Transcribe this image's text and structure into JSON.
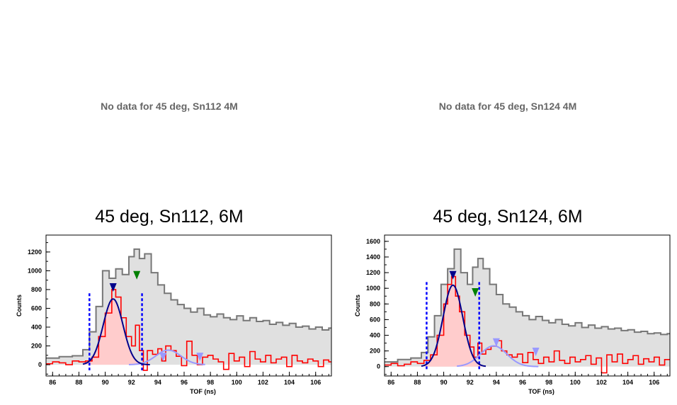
{
  "placeholders": [
    {
      "text": "No data for 45 deg, Sn112 4M"
    },
    {
      "text": "No data for 45 deg, Sn124 4M"
    }
  ],
  "colors": {
    "total_fill": "#e0e0e0",
    "total_line": "#777777",
    "subtracted_line": "#ff0000",
    "subtracted_fill": "#ffcccc",
    "main_fit": "#00008b",
    "secondary_fit": "#9999ff",
    "cut_lines": "#0000ff",
    "marker_green": "#008000"
  },
  "chart_data": [
    {
      "type": "histogram",
      "title": "45 deg, Sn112, 6M",
      "xlabel": "TOF (ns)",
      "ylabel": "Counts",
      "xlim": [
        85.5,
        107.2
      ],
      "ylim": [
        -120,
        1380
      ],
      "xticks": [
        86,
        88,
        90,
        92,
        94,
        96,
        98,
        100,
        102,
        104,
        106
      ],
      "yticks": [
        0,
        200,
        400,
        600,
        800,
        1000,
        1200
      ],
      "series": [
        {
          "role": "total",
          "points": [
            [
              85.5,
              70
            ],
            [
              86.5,
              85
            ],
            [
              87.5,
              95
            ],
            [
              88.3,
              160
            ],
            [
              88.8,
              350
            ],
            [
              89.3,
              620
            ],
            [
              89.8,
              1000
            ],
            [
              90.3,
              920
            ],
            [
              90.8,
              1020
            ],
            [
              91.3,
              960
            ],
            [
              91.8,
              1150
            ],
            [
              92.2,
              1230
            ],
            [
              92.6,
              1130
            ],
            [
              93.0,
              1180
            ],
            [
              93.5,
              980
            ],
            [
              94.0,
              850
            ],
            [
              94.5,
              760
            ],
            [
              95.0,
              690
            ],
            [
              95.5,
              640
            ],
            [
              96.0,
              600
            ],
            [
              96.5,
              560
            ],
            [
              97.0,
              600
            ],
            [
              97.5,
              530
            ],
            [
              98.0,
              510
            ],
            [
              98.5,
              540
            ],
            [
              99.0,
              500
            ],
            [
              99.5,
              480
            ],
            [
              100.0,
              520
            ],
            [
              100.5,
              470
            ],
            [
              101.0,
              500
            ],
            [
              101.5,
              460
            ],
            [
              102.0,
              470
            ],
            [
              102.5,
              430
            ],
            [
              103.0,
              450
            ],
            [
              103.5,
              420
            ],
            [
              104.0,
              440
            ],
            [
              104.5,
              400
            ],
            [
              105.0,
              410
            ],
            [
              105.5,
              380
            ],
            [
              106.0,
              400
            ],
            [
              106.5,
              370
            ],
            [
              107.0,
              390
            ]
          ]
        },
        {
          "role": "subtracted",
          "points": [
            [
              85.5,
              10
            ],
            [
              86.0,
              30
            ],
            [
              86.5,
              20
            ],
            [
              87.0,
              0
            ],
            [
              87.5,
              40
            ],
            [
              88.0,
              30
            ],
            [
              88.5,
              40
            ],
            [
              89.0,
              80
            ],
            [
              89.5,
              300
            ],
            [
              90.0,
              550
            ],
            [
              90.5,
              800
            ],
            [
              90.8,
              720
            ],
            [
              91.2,
              500
            ],
            [
              91.6,
              300
            ],
            [
              92.0,
              200
            ],
            [
              92.3,
              420
            ],
            [
              92.6,
              150
            ],
            [
              92.9,
              -60
            ],
            [
              93.2,
              150
            ],
            [
              93.6,
              110
            ],
            [
              94.0,
              170
            ],
            [
              94.3,
              40
            ],
            [
              94.6,
              200
            ],
            [
              95.0,
              150
            ],
            [
              95.4,
              90
            ],
            [
              95.8,
              -10
            ],
            [
              96.2,
              250
            ],
            [
              96.6,
              100
            ],
            [
              97.0,
              0
            ],
            [
              97.4,
              80
            ],
            [
              97.8,
              100
            ],
            [
              98.2,
              60
            ],
            [
              98.6,
              30
            ],
            [
              99.0,
              -50
            ],
            [
              99.4,
              120
            ],
            [
              99.8,
              40
            ],
            [
              100.2,
              80
            ],
            [
              100.6,
              -20
            ],
            [
              101.0,
              140
            ],
            [
              101.4,
              60
            ],
            [
              101.8,
              30
            ],
            [
              102.2,
              100
            ],
            [
              102.6,
              20
            ],
            [
              103.0,
              60
            ],
            [
              103.4,
              80
            ],
            [
              103.8,
              -20
            ],
            [
              104.2,
              100
            ],
            [
              104.6,
              40
            ],
            [
              105.0,
              20
            ],
            [
              105.4,
              60
            ],
            [
              105.8,
              40
            ],
            [
              106.2,
              -20
            ],
            [
              106.6,
              50
            ],
            [
              107.0,
              30
            ]
          ]
        }
      ],
      "fits": {
        "main": {
          "mu": 90.6,
          "sigma": 0.75,
          "amp": 700,
          "range": [
            88.3,
            93.4
          ]
        },
        "secondary": [
          {
            "mu": 94.8,
            "sigma": 0.95,
            "amp": 155,
            "range": [
              91.8,
              97.6
            ]
          }
        ]
      },
      "cut_lines": [
        {
          "x": 88.8,
          "top": 760
        },
        {
          "x": 92.8,
          "top": 760
        }
      ],
      "markers": [
        {
          "x": 90.6,
          "y": 800,
          "color": "main"
        },
        {
          "x": 92.4,
          "y": 930,
          "color": "green"
        },
        {
          "x": 94.4,
          "y": 60,
          "color": "secondary"
        },
        {
          "x": 97.2,
          "y": 60,
          "color": "secondary"
        }
      ]
    },
    {
      "type": "histogram",
      "title": "45 deg, Sn124, 6M",
      "xlabel": "TOF (ns)",
      "ylabel": "Counts",
      "xlim": [
        85.5,
        107.2
      ],
      "ylim": [
        -120,
        1680
      ],
      "xticks": [
        86,
        88,
        90,
        92,
        94,
        96,
        98,
        100,
        102,
        104,
        106
      ],
      "yticks": [
        0,
        200,
        400,
        600,
        800,
        1000,
        1200,
        1400,
        1600
      ],
      "series": [
        {
          "role": "total",
          "points": [
            [
              85.5,
              60
            ],
            [
              86.5,
              90
            ],
            [
              87.5,
              110
            ],
            [
              88.3,
              180
            ],
            [
              88.8,
              380
            ],
            [
              89.3,
              650
            ],
            [
              89.8,
              1050
            ],
            [
              90.3,
              1250
            ],
            [
              90.8,
              1500
            ],
            [
              91.3,
              1200
            ],
            [
              91.8,
              1050
            ],
            [
              92.2,
              1270
            ],
            [
              92.6,
              1380
            ],
            [
              93.0,
              1250
            ],
            [
              93.5,
              1050
            ],
            [
              94.0,
              920
            ],
            [
              94.5,
              800
            ],
            [
              95.0,
              760
            ],
            [
              95.5,
              700
            ],
            [
              96.0,
              650
            ],
            [
              96.5,
              600
            ],
            [
              97.0,
              640
            ],
            [
              97.5,
              590
            ],
            [
              98.0,
              560
            ],
            [
              98.5,
              600
            ],
            [
              99.0,
              540
            ],
            [
              99.5,
              520
            ],
            [
              100.0,
              560
            ],
            [
              100.5,
              500
            ],
            [
              101.0,
              530
            ],
            [
              101.5,
              490
            ],
            [
              102.0,
              510
            ],
            [
              102.5,
              480
            ],
            [
              103.0,
              490
            ],
            [
              103.5,
              460
            ],
            [
              104.0,
              470
            ],
            [
              104.5,
              440
            ],
            [
              105.0,
              450
            ],
            [
              105.5,
              420
            ],
            [
              106.0,
              430
            ],
            [
              106.5,
              410
            ],
            [
              107.0,
              420
            ]
          ]
        },
        {
          "role": "subtracted",
          "points": [
            [
              85.5,
              20
            ],
            [
              86.0,
              40
            ],
            [
              86.5,
              10
            ],
            [
              87.0,
              30
            ],
            [
              87.5,
              60
            ],
            [
              88.0,
              40
            ],
            [
              88.5,
              80
            ],
            [
              89.0,
              150
            ],
            [
              89.5,
              400
            ],
            [
              90.0,
              800
            ],
            [
              90.3,
              1050
            ],
            [
              90.6,
              1150
            ],
            [
              90.9,
              900
            ],
            [
              91.2,
              700
            ],
            [
              91.6,
              400
            ],
            [
              92.0,
              250
            ],
            [
              92.3,
              120
            ],
            [
              92.6,
              300
            ],
            [
              92.9,
              160
            ],
            [
              93.2,
              220
            ],
            [
              93.6,
              260
            ],
            [
              94.0,
              330
            ],
            [
              94.4,
              200
            ],
            [
              94.8,
              150
            ],
            [
              95.2,
              120
            ],
            [
              95.6,
              160
            ],
            [
              96.0,
              50
            ],
            [
              96.4,
              180
            ],
            [
              96.8,
              90
            ],
            [
              97.2,
              40
            ],
            [
              97.6,
              120
            ],
            [
              98.0,
              60
            ],
            [
              98.4,
              200
            ],
            [
              98.8,
              80
            ],
            [
              99.2,
              40
            ],
            [
              99.6,
              120
            ],
            [
              100.0,
              60
            ],
            [
              100.4,
              90
            ],
            [
              100.8,
              140
            ],
            [
              101.2,
              30
            ],
            [
              101.6,
              110
            ],
            [
              102.0,
              -80
            ],
            [
              102.4,
              150
            ],
            [
              102.8,
              60
            ],
            [
              103.2,
              160
            ],
            [
              103.6,
              40
            ],
            [
              104.0,
              90
            ],
            [
              104.4,
              140
            ],
            [
              104.8,
              30
            ],
            [
              105.2,
              100
            ],
            [
              105.6,
              60
            ],
            [
              106.0,
              120
            ],
            [
              106.4,
              20
            ],
            [
              106.8,
              90
            ]
          ]
        }
      ],
      "fits": {
        "main": {
          "mu": 90.7,
          "sigma": 0.75,
          "amp": 1040,
          "range": [
            88.3,
            93.2
          ]
        },
        "secondary": [
          {
            "mu": 93.8,
            "sigma": 1.0,
            "amp": 265,
            "range": [
              91.0,
              97.2
            ]
          }
        ]
      },
      "cut_lines": [
        {
          "x": 88.7,
          "top": 1080
        },
        {
          "x": 92.7,
          "top": 1080
        }
      ],
      "markers": [
        {
          "x": 90.7,
          "y": 1140,
          "color": "main"
        },
        {
          "x": 92.4,
          "y": 920,
          "color": "green"
        },
        {
          "x": 94.0,
          "y": 280,
          "color": "secondary"
        },
        {
          "x": 97.0,
          "y": 160,
          "color": "secondary"
        }
      ]
    }
  ]
}
